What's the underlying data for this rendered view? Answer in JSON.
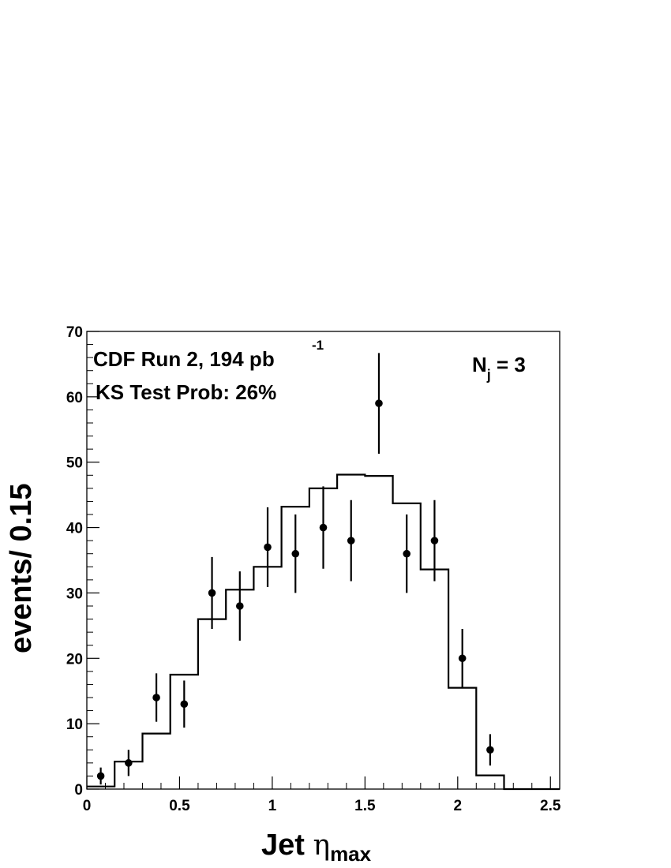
{
  "chart_data": {
    "type": "scatter",
    "annotations": {
      "run_label": "CDF Run 2, 194 pb",
      "run_label_exponent": "-1",
      "ks_label": "KS Test Prob: 26%",
      "nj_label_base": "N",
      "nj_label_sub": "j",
      "nj_label_value": " = 3"
    },
    "xlabel": {
      "prefix": "Jet ",
      "symbol": "η",
      "subscript": "max"
    },
    "ylabel": "events/ 0.15",
    "xlim": [
      0,
      2.55
    ],
    "ylim": [
      0,
      70
    ],
    "xticks": [
      0,
      0.5,
      1,
      1.5,
      2,
      2.5
    ],
    "xtick_labels": [
      "0",
      "0.5",
      "1",
      "1.5",
      "2",
      "2.5"
    ],
    "yticks": [
      0,
      10,
      20,
      30,
      40,
      50,
      60,
      70
    ],
    "ytick_labels": [
      "0",
      "10",
      "20",
      "30",
      "40",
      "50",
      "60",
      "70"
    ],
    "data_points": {
      "x": [
        0.075,
        0.225,
        0.375,
        0.525,
        0.675,
        0.825,
        0.975,
        1.125,
        1.275,
        1.425,
        1.575,
        1.725,
        1.875,
        2.025,
        2.175
      ],
      "y": [
        2,
        4,
        14,
        13,
        30,
        28,
        37,
        36,
        40,
        38,
        59,
        36,
        38,
        20,
        6
      ],
      "y_err_low": [
        1.3,
        2,
        3.7,
        3.6,
        5.5,
        5.3,
        6.1,
        6,
        6.3,
        6.2,
        7.7,
        6,
        6.2,
        4.5,
        2.4
      ],
      "y_err_high": [
        1.3,
        2,
        3.7,
        3.6,
        5.5,
        5.3,
        6.1,
        6,
        6.3,
        6.2,
        7.7,
        6,
        6.2,
        4.5,
        2.4
      ]
    },
    "histogram": {
      "bin_edges": [
        0,
        0.15,
        0.3,
        0.45,
        0.6,
        0.75,
        0.9,
        1.05,
        1.2,
        1.35,
        1.5,
        1.65,
        1.8,
        1.95,
        2.1,
        2.25,
        2.55
      ],
      "values": [
        0.4,
        4.2,
        8.5,
        17.5,
        26,
        30.5,
        34,
        43.2,
        46,
        48.1,
        47.9,
        43.7,
        33.6,
        15.5,
        2.1,
        0
      ]
    }
  }
}
